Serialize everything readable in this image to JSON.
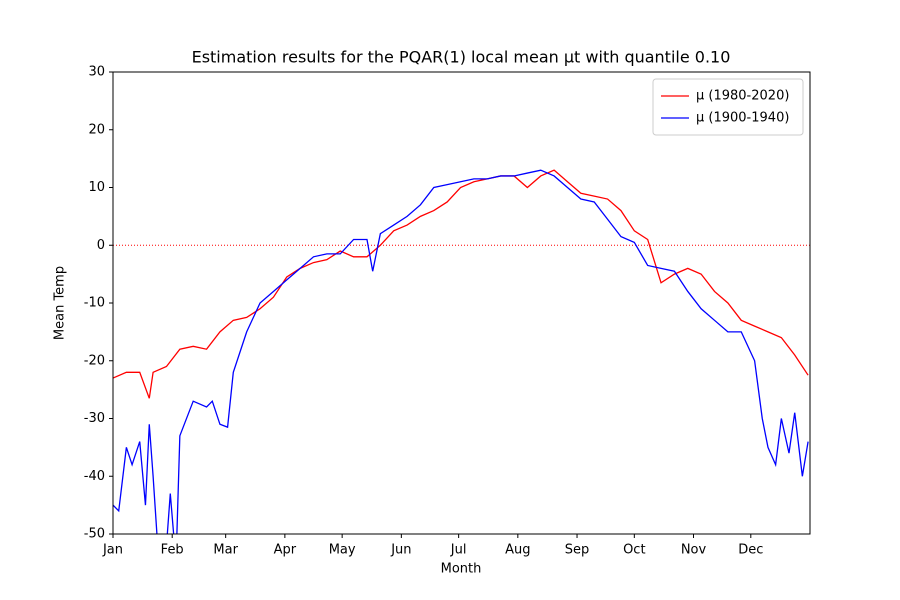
{
  "chart_data": {
    "type": "line",
    "title": "Estimation results for the PQAR(1) local mean µt with quantile 0.10",
    "x_label": "Month",
    "y_label": "Mean Temp",
    "xlim": [
      0,
      365
    ],
    "ylim": [
      -50,
      30
    ],
    "xticks": [
      {
        "value": 0,
        "label": "Jan"
      },
      {
        "value": 31,
        "label": "Feb"
      },
      {
        "value": 59,
        "label": "Mar"
      },
      {
        "value": 90,
        "label": "Apr"
      },
      {
        "value": 120,
        "label": "May"
      },
      {
        "value": 151,
        "label": "Jun"
      },
      {
        "value": 181,
        "label": "Jul"
      },
      {
        "value": 212,
        "label": "Aug"
      },
      {
        "value": 243,
        "label": "Sep"
      },
      {
        "value": 273,
        "label": "Oct"
      },
      {
        "value": 304,
        "label": "Nov"
      },
      {
        "value": 334,
        "label": "Dec"
      }
    ],
    "yticks": [
      -50,
      -40,
      -30,
      -20,
      -10,
      0,
      10,
      20,
      30
    ],
    "grid": false,
    "legend": "upper right",
    "hline": {
      "value": 0,
      "color": "#ff0000"
    },
    "series": [
      {
        "name": "µ (1980-2020)",
        "color": "#ff0000",
        "x": [
          0,
          7,
          14,
          19,
          21,
          28,
          35,
          42,
          49,
          56,
          63,
          70,
          77,
          84,
          91,
          98,
          105,
          112,
          119,
          126,
          133,
          140,
          147,
          154,
          161,
          168,
          175,
          182,
          189,
          196,
          203,
          210,
          217,
          224,
          231,
          238,
          245,
          252,
          259,
          266,
          273,
          280,
          287,
          294,
          301,
          308,
          315,
          322,
          329,
          336,
          343,
          350,
          357,
          364
        ],
        "values": [
          -23,
          -22,
          -22,
          -26.5,
          -22,
          -21,
          -18,
          -17.5,
          -18,
          -15,
          -13,
          -12.5,
          -11,
          -9,
          -5.5,
          -4,
          -3,
          -2.5,
          -1,
          -2,
          -2,
          0,
          2.5,
          3.5,
          5,
          6,
          7.5,
          10,
          11,
          11.5,
          12,
          12,
          10,
          12,
          13,
          11,
          9,
          8.5,
          8,
          6,
          2.5,
          1,
          -6.5,
          -5,
          -4,
          -5,
          -8,
          -10,
          -13,
          -14,
          -15,
          -16,
          -19,
          -22.5
        ]
      },
      {
        "name": "µ (1900-1940)",
        "color": "#0000ff",
        "x": [
          0,
          3,
          7,
          10,
          14,
          17,
          19,
          21,
          23,
          24,
          28,
          30,
          33,
          35,
          42,
          49,
          52,
          56,
          60,
          63,
          70,
          77,
          84,
          91,
          98,
          105,
          112,
          119,
          126,
          133,
          136,
          140,
          147,
          154,
          161,
          168,
          175,
          182,
          189,
          196,
          203,
          210,
          217,
          224,
          231,
          238,
          245,
          252,
          259,
          266,
          273,
          280,
          287,
          294,
          301,
          308,
          315,
          322,
          329,
          336,
          340,
          343,
          347,
          350,
          354,
          357,
          361,
          364
        ],
        "values": [
          -45,
          -46,
          -35,
          -38,
          -34,
          -45,
          -31,
          -40,
          -50,
          -55,
          -52,
          -43,
          -55,
          -33,
          -27,
          -28,
          -27,
          -31,
          -31.5,
          -22,
          -15,
          -10,
          -8,
          -6,
          -4,
          -2,
          -1.5,
          -1.5,
          1,
          1,
          -4.5,
          2,
          3.5,
          5,
          7,
          10,
          10.5,
          11,
          11.5,
          11.5,
          12,
          12,
          12.5,
          13,
          12,
          10,
          8,
          7.5,
          4.5,
          1.5,
          0.5,
          -3.5,
          -4,
          -4.5,
          -8,
          -11,
          -13,
          -15,
          -15,
          -20,
          -30,
          -35,
          -38,
          -30,
          -36,
          -29,
          -40,
          -34
        ]
      }
    ]
  }
}
